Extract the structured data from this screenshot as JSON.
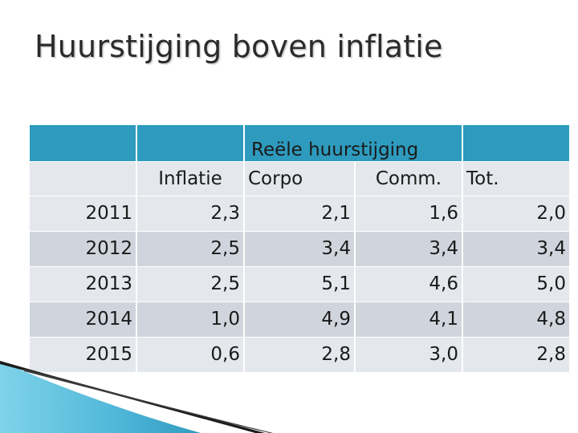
{
  "title": "Huurstijging boven inflatie",
  "table": {
    "group_header": "Reële huurstijging",
    "columns": [
      "",
      "Inflatie",
      "Corpo",
      "Comm.",
      "Tot."
    ],
    "rows": [
      {
        "year": "2011",
        "inflatie": "2,3",
        "corpo": "2,1",
        "comm": "1,6",
        "tot": "2,0"
      },
      {
        "year": "2012",
        "inflatie": "2,5",
        "corpo": "3,4",
        "comm": "3,4",
        "tot": "3,4"
      },
      {
        "year": "2013",
        "inflatie": "2,5",
        "corpo": "5,1",
        "comm": "4,6",
        "tot": "5,0"
      },
      {
        "year": "2014",
        "inflatie": "1,0",
        "corpo": "4,9",
        "comm": "4,1",
        "tot": "4,8"
      },
      {
        "year": "2015",
        "inflatie": "0,6",
        "corpo": "2,8",
        "comm": "3,0",
        "tot": "2,8"
      }
    ]
  },
  "colors": {
    "header_blue": "#2e9bbe",
    "row_light": "#e4e7ec",
    "row_dark": "#d0d5dd",
    "decor_blue": "#5bc0de"
  }
}
